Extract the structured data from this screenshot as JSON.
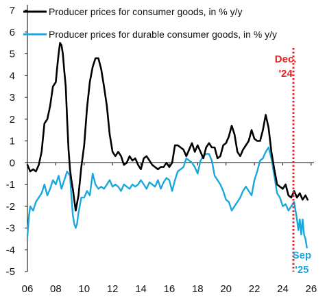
{
  "chart_data": {
    "type": "line",
    "title": "",
    "xlabel": "",
    "ylabel": "",
    "xlim": [
      2006,
      2026.2
    ],
    "ylim": [
      -5,
      7
    ],
    "x_ticks": [
      "06",
      "08",
      "10",
      "12",
      "14",
      "16",
      "18",
      "20",
      "22",
      "24",
      "26"
    ],
    "x_tick_values": [
      2006,
      2008,
      2010,
      2012,
      2014,
      2016,
      2018,
      2020,
      2022,
      2024,
      2026
    ],
    "y_ticks": [
      "7",
      "6",
      "5",
      "4",
      "3",
      "2",
      "1",
      "0",
      "-1",
      "-2",
      "-3",
      "-4",
      "-5"
    ],
    "y_tick_values": [
      7,
      6,
      5,
      4,
      3,
      2,
      1,
      0,
      -1,
      -2,
      -3,
      -4,
      -5
    ],
    "legend": "top-left",
    "grid": false,
    "colors": {
      "consumer": "#000000",
      "durable": "#1aa7dc",
      "marker": "#e32322",
      "axis": "#000000"
    },
    "series": [
      {
        "name": "Producer prices for consumer goods, in % y/y",
        "color": "#000000",
        "x": [
          2006.0,
          2006.2,
          2006.4,
          2006.6,
          2006.8,
          2007.0,
          2007.2,
          2007.4,
          2007.6,
          2007.8,
          2008.0,
          2008.1,
          2008.2,
          2008.3,
          2008.4,
          2008.5,
          2008.6,
          2008.7,
          2008.8,
          2008.9,
          2009.0,
          2009.1,
          2009.2,
          2009.3,
          2009.4,
          2009.6,
          2009.8,
          2010.0,
          2010.2,
          2010.4,
          2010.6,
          2010.8,
          2011.0,
          2011.2,
          2011.4,
          2011.6,
          2011.8,
          2012.0,
          2012.2,
          2012.4,
          2012.6,
          2012.8,
          2013.0,
          2013.2,
          2013.4,
          2013.6,
          2013.8,
          2014.0,
          2014.2,
          2014.4,
          2014.6,
          2014.8,
          2015.0,
          2015.2,
          2015.4,
          2015.6,
          2015.8,
          2016.0,
          2016.2,
          2016.4,
          2016.6,
          2016.8,
          2017.0,
          2017.2,
          2017.4,
          2017.6,
          2017.8,
          2018.0,
          2018.2,
          2018.4,
          2018.6,
          2018.8,
          2019.0,
          2019.2,
          2019.4,
          2019.6,
          2019.8,
          2020.0,
          2020.2,
          2020.4,
          2020.6,
          2020.8,
          2021.0,
          2021.2,
          2021.4,
          2021.6,
          2021.8,
          2022.0,
          2022.2,
          2022.4,
          2022.6,
          2022.8,
          2023.0,
          2023.2,
          2023.4,
          2023.6,
          2023.8,
          2024.0,
          2024.2,
          2024.4,
          2024.6,
          2024.8,
          2025.0,
          2025.2,
          2025.4,
          2025.6,
          2025.75
        ],
        "values": [
          -0.1,
          -0.4,
          -0.3,
          -0.4,
          -0.1,
          0.5,
          1.8,
          2.0,
          2.6,
          3.5,
          3.7,
          4.4,
          5.0,
          5.5,
          5.4,
          5.0,
          4.2,
          3.5,
          2.0,
          0.6,
          -0.3,
          -0.8,
          -1.2,
          -1.7,
          -2.2,
          -1.5,
          -0.2,
          0.8,
          2.5,
          3.7,
          4.4,
          4.8,
          4.8,
          4.3,
          3.5,
          2.6,
          1.3,
          0.5,
          0.3,
          0.5,
          0.3,
          -0.1,
          0.0,
          0.3,
          0.1,
          0.2,
          -0.1,
          -0.3,
          0.2,
          0.3,
          0.1,
          -0.1,
          -0.2,
          -0.3,
          -0.2,
          -0.2,
          0.0,
          -0.2,
          0.0,
          0.8,
          0.8,
          0.7,
          0.6,
          0.3,
          0.6,
          0.9,
          0.5,
          0.8,
          0.5,
          0.2,
          0.7,
          0.9,
          0.7,
          0.7,
          0.2,
          0.3,
          0.8,
          0.9,
          1.2,
          1.7,
          1.3,
          0.5,
          0.3,
          0.6,
          0.8,
          1.0,
          1.5,
          1.1,
          1.0,
          1.0,
          1.5,
          2.2,
          1.6,
          0.5,
          -0.3,
          -1.0,
          -1.1,
          -1.2,
          -1.0,
          -1.5,
          -1.6,
          -1.3,
          -1.6,
          -1.4,
          -1.7,
          -1.5,
          -1.7
        ]
      },
      {
        "name": "Producer prices for durable consumer goods, in % y/y",
        "color": "#1aa7dc",
        "x": [
          2006.0,
          2006.1,
          2006.2,
          2006.4,
          2006.6,
          2006.8,
          2007.0,
          2007.2,
          2007.4,
          2007.6,
          2007.8,
          2008.0,
          2008.2,
          2008.4,
          2008.6,
          2008.8,
          2009.0,
          2009.1,
          2009.2,
          2009.3,
          2009.4,
          2009.5,
          2009.6,
          2009.8,
          2010.0,
          2010.2,
          2010.4,
          2010.6,
          2010.8,
          2011.0,
          2011.2,
          2011.4,
          2011.6,
          2011.8,
          2012.0,
          2012.2,
          2012.4,
          2012.6,
          2012.8,
          2013.0,
          2013.2,
          2013.4,
          2013.6,
          2013.8,
          2014.0,
          2014.2,
          2014.4,
          2014.6,
          2014.8,
          2015.0,
          2015.2,
          2015.4,
          2015.6,
          2015.8,
          2016.0,
          2016.2,
          2016.4,
          2016.6,
          2016.8,
          2017.0,
          2017.2,
          2017.4,
          2017.6,
          2017.8,
          2018.0,
          2018.2,
          2018.4,
          2018.6,
          2018.8,
          2019.0,
          2019.2,
          2019.4,
          2019.6,
          2019.8,
          2020.0,
          2020.2,
          2020.4,
          2020.6,
          2020.8,
          2021.0,
          2021.2,
          2021.4,
          2021.6,
          2021.8,
          2022.0,
          2022.2,
          2022.4,
          2022.6,
          2022.8,
          2023.0,
          2023.2,
          2023.4,
          2023.6,
          2023.8,
          2024.0,
          2024.2,
          2024.4,
          2024.6,
          2024.8,
          2025.0,
          2025.1,
          2025.2,
          2025.3,
          2025.4,
          2025.5,
          2025.6,
          2025.7
        ],
        "values": [
          -3.4,
          -2.5,
          -2.0,
          -2.2,
          -1.8,
          -1.6,
          -1.4,
          -1.0,
          -1.5,
          -1.2,
          -0.8,
          -1.0,
          -0.6,
          -1.2,
          -0.8,
          -0.4,
          -0.6,
          -1.5,
          -2.4,
          -2.8,
          -3.0,
          -2.8,
          -2.3,
          -1.6,
          -1.6,
          -1.3,
          -1.5,
          -0.5,
          -1.0,
          -1.2,
          -1.1,
          -1.2,
          -1.0,
          -0.8,
          -1.1,
          -1.0,
          -1.1,
          -1.3,
          -1.0,
          -1.1,
          -1.2,
          -1.0,
          -1.1,
          -1.0,
          -0.8,
          -1.0,
          -1.2,
          -0.9,
          -1.0,
          -1.1,
          -0.8,
          -1.2,
          -0.9,
          -0.7,
          -0.8,
          -1.3,
          -0.8,
          -0.4,
          -0.3,
          -0.2,
          0.2,
          0.1,
          0.0,
          -0.2,
          -0.5,
          0.1,
          0.3,
          0.4,
          0.4,
          0.1,
          -0.6,
          -0.8,
          -1.0,
          -1.3,
          -1.7,
          -1.8,
          -2.2,
          -2.0,
          -1.8,
          -1.6,
          -1.3,
          -1.1,
          -1.3,
          -1.5,
          -0.8,
          -0.4,
          0.1,
          0.2,
          0.5,
          0.7,
          0.2,
          -0.6,
          -1.4,
          -1.6,
          -2.0,
          -1.9,
          -2.2,
          -2.0,
          -1.8,
          -2.6,
          -3.1,
          -2.6,
          -3.3,
          -2.6,
          -3.3,
          -3.5,
          -3.9
        ]
      }
    ],
    "vertical_line": {
      "x": 2024.75,
      "style": "dotted",
      "color": "#e32322"
    },
    "annotations": [
      {
        "lines": [
          "Dec.",
          "'24"
        ],
        "color": "#e32322",
        "x": 2024.2,
        "y": 4.6
      },
      {
        "lines": [
          "Sep",
          "'25"
        ],
        "color": "#1aa7dc",
        "x": 2025.35,
        "y": -4.4
      }
    ]
  }
}
